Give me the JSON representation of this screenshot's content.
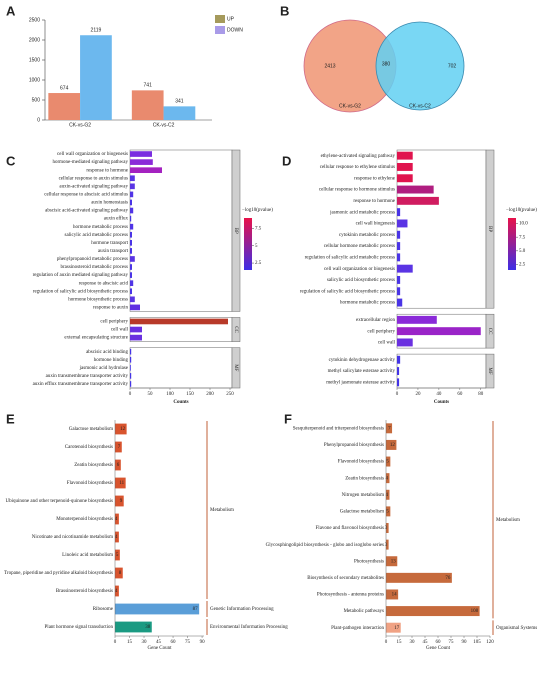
{
  "chart_data": [
    {
      "type": "bar",
      "label": "A",
      "categories": [
        "CK-vs-G2",
        "CK-vs-C2"
      ],
      "category_colors": [
        "#c0306a",
        "#3a9a6a"
      ],
      "series": [
        {
          "name": "UP",
          "color": "#e98a6e",
          "legend_color": "#a59a5c",
          "values": [
            674,
            741
          ]
        },
        {
          "name": "DOWN",
          "color": "#6cb8ee",
          "legend_color": "#a99be8",
          "values": [
            2119,
            341
          ]
        }
      ],
      "ylim": [
        0,
        2500
      ],
      "yticks": [
        0,
        500,
        1000,
        1500,
        2000,
        2500
      ]
    },
    {
      "type": "venn",
      "label": "B",
      "sets": [
        {
          "name": "CK-vs-G2",
          "color": "#f2a487",
          "text_color": "#c0306a"
        },
        {
          "name": "CK-vs-C2",
          "color": "#62d0f2",
          "text_color": "#2a7a9a"
        }
      ],
      "values": [
        2413,
        380,
        702
      ]
    },
    {
      "type": "hbar",
      "label": "C",
      "xlabel": "Counts",
      "xlim": [
        0,
        255
      ],
      "xticks": [
        0,
        50,
        100,
        150,
        200,
        250
      ],
      "colorbar": {
        "title": "−log10(pvalue)",
        "lim": [
          1.5,
          9
        ],
        "ticks": [
          7.5,
          5,
          2.5
        ],
        "colors": [
          "#3d2ee6",
          "#e8124a"
        ]
      },
      "groups": [
        {
          "name": "BP",
          "categories": [
            "cell wall organization or biogenesis",
            "hormone-mediated signaling pathway",
            "response to hormone",
            "cellular response to auxin stimulus",
            "auxin-activated signaling pathway",
            "cellular response to abscisic acid stimulus",
            "auxin homeostasis",
            "abscisic acid-activated signaling pathway",
            "auxin efflux",
            "hormone metabolic process",
            "salicylic acid metabolic process",
            "hormone transport",
            "auxin transport",
            "phenylpropanoid metabolic process",
            "brassinosteroid metabolic process",
            "regulation of auxin mediated signaling pathway",
            "response to abscisic acid",
            "regulation of salicylic acid biosynthetic process",
            "hormone biosynthetic process",
            "response to auxin"
          ],
          "values": [
            55,
            57,
            80,
            12,
            12,
            8,
            5,
            8,
            3,
            8,
            5,
            5,
            5,
            12,
            5,
            5,
            8,
            5,
            12,
            25
          ],
          "colors": [
            "#7a2ee0",
            "#8a2ad8",
            "#a422c0",
            "#5a34e4",
            "#5a34e4",
            "#5034e6",
            "#4a34e6",
            "#5034e6",
            "#4434e6",
            "#5034e6",
            "#4a34e6",
            "#4a34e6",
            "#4a34e6",
            "#5a34e4",
            "#4a34e6",
            "#4a34e6",
            "#5034e6",
            "#4a34e6",
            "#5a34e4",
            "#6030e2"
          ]
        },
        {
          "name": "CC",
          "categories": [
            "cell periphery",
            "cell wall",
            "external encapsulating structure"
          ],
          "values": [
            245,
            30,
            30
          ],
          "colors": [
            "#b83a2a",
            "#6a30e0",
            "#6a30e0"
          ]
        },
        {
          "name": "MF",
          "categories": [
            "abscisic acid binding",
            "hormone binding",
            "jasmonic acid hydrolase",
            "auxin transmembrane transporter activity",
            "auxin efflux transmembrane transporter activity"
          ],
          "values": [
            3,
            3,
            2,
            3,
            3
          ],
          "colors": [
            "#4434e6",
            "#4434e6",
            "#4434e6",
            "#4434e6",
            "#4434e6"
          ]
        }
      ]
    },
    {
      "type": "hbar",
      "label": "D",
      "xlabel": "Counts",
      "xlim": [
        0,
        85
      ],
      "xticks": [
        0,
        20,
        40,
        60,
        80
      ],
      "colorbar": {
        "title": "−log10(pvalue)",
        "lim": [
          1.5,
          11
        ],
        "ticks": [
          {
            "value": 10,
            "label": "10.0"
          },
          7.5,
          {
            "value": 5,
            "label": "5.0"
          },
          2.5
        ],
        "colors": [
          "#3d2ee6",
          "#e8124a"
        ]
      },
      "groups": [
        {
          "name": "BP",
          "categories": [
            "ethylene-activated signaling pathway",
            "cellular response to ethylene stimulus",
            "response to ethylene",
            "cellular response to hormone stimulus",
            "response to hormone",
            "jasmonic acid metabolic process",
            "cell wall biogenesis",
            "cytokinin metabolic process",
            "cellular hormone metabolic process",
            "regulation of salicylic acid metabolic process",
            "cell wall organization or biogenesis",
            "salicylic acid biosynthetic process",
            "regulation of salicylic acid biosynthetic process",
            "hormone metabolic process"
          ],
          "values": [
            15,
            15,
            15,
            35,
            40,
            3,
            10,
            3,
            3,
            3,
            15,
            3,
            3,
            5
          ],
          "colors": [
            "#e0144e",
            "#e0144e",
            "#e0144e",
            "#b01e80",
            "#d01c60",
            "#4a34e6",
            "#5a34e4",
            "#4a34e6",
            "#4a34e6",
            "#4a34e6",
            "#5a34e4",
            "#4a34e6",
            "#4a34e6",
            "#4a34e6"
          ]
        },
        {
          "name": "CC",
          "categories": [
            "extracellular region",
            "cell periphery",
            "cell wall"
          ],
          "values": [
            38,
            80,
            15
          ],
          "colors": [
            "#8a2ad8",
            "#9a24c8",
            "#6a30e0"
          ]
        },
        {
          "name": "MF",
          "categories": [
            "cytokinin dehydrogenase activity",
            "methyl salicylate esterase activity",
            "methyl jasmonate esterase activity"
          ],
          "values": [
            3,
            2,
            2
          ],
          "colors": [
            "#4434e6",
            "#4434e6",
            "#4434e6"
          ]
        }
      ]
    },
    {
      "type": "hbar",
      "label": "E",
      "xlabel": "Gene Count",
      "xlim": [
        0,
        92
      ],
      "xticks": [
        0,
        15,
        30,
        45,
        60,
        75,
        90
      ],
      "groups": [
        {
          "name": "Metabolism",
          "categories": [
            "Galactose metabolism",
            "Carotenoid biosynthesis",
            "Zeatin biosynthesis",
            "Flavonoid biosynthesis",
            "Ubiquinone and other terpenoid-quinone biosynthesis",
            "Monoterpenoid biosynthesis",
            "Nicotinate and nicotinamide metabolism",
            "Linoleic acid metabolism",
            "Tropane, piperidine and pyridine alkaloid biosynthesis",
            "Brassinosteroid biosynthesis"
          ],
          "values": [
            12,
            7,
            6,
            11,
            9,
            4,
            4,
            5,
            8,
            4
          ],
          "colors": [
            "#d8542e",
            "#d8542e",
            "#d8542e",
            "#d8542e",
            "#d8542e",
            "#d8542e",
            "#d8542e",
            "#d8542e",
            "#d8542e",
            "#d8542e"
          ]
        },
        {
          "name": "Genetic Information Processing",
          "categories": [
            "Ribosome"
          ],
          "values": [
            87
          ],
          "colors": [
            "#5a9ed8"
          ]
        },
        {
          "name": "Environmental Information Processing",
          "categories": [
            "Plant hormone signal transduction"
          ],
          "values": [
            38
          ],
          "colors": [
            "#1a9a82"
          ]
        }
      ]
    },
    {
      "type": "hbar",
      "label": "F",
      "xlabel": "Gene Count",
      "xlim": [
        0,
        120
      ],
      "xticks": [
        0,
        15,
        30,
        45,
        60,
        75,
        90,
        105,
        120
      ],
      "groups": [
        {
          "name": "Metabolism",
          "categories": [
            "Sesquiterpenoid and triterpenoid biosynthesis",
            "Phenylpropanoid biosynthesis",
            "Flavonoid biosynthesis",
            "Zeatin biosynthesis",
            "Nitrogen metabolism",
            "Galactose metabolism",
            "Flavone and flavonol biosynthesis",
            "Glycosphingolipid biosynthesis - globo and isoglobo series",
            "Photosynthesis",
            "Biosynthesis of secondary metabolites",
            "Photosynthesis - antenna proteins",
            "Metabolic pathways"
          ],
          "values": [
            7,
            12,
            5,
            4,
            4,
            5,
            3,
            3,
            13,
            76,
            14,
            108
          ],
          "colors": [
            "#c66a3c",
            "#c66a3c",
            "#c66a3c",
            "#c66a3c",
            "#c66a3c",
            "#c66a3c",
            "#c66a3c",
            "#c66a3c",
            "#c66a3c",
            "#c66a3c",
            "#c66a3c",
            "#c66a3c"
          ]
        },
        {
          "name": "Organismal Systems",
          "categories": [
            "Plant-pathogen interaction"
          ],
          "values": [
            17
          ],
          "colors": [
            "#f0a284"
          ]
        }
      ]
    }
  ]
}
